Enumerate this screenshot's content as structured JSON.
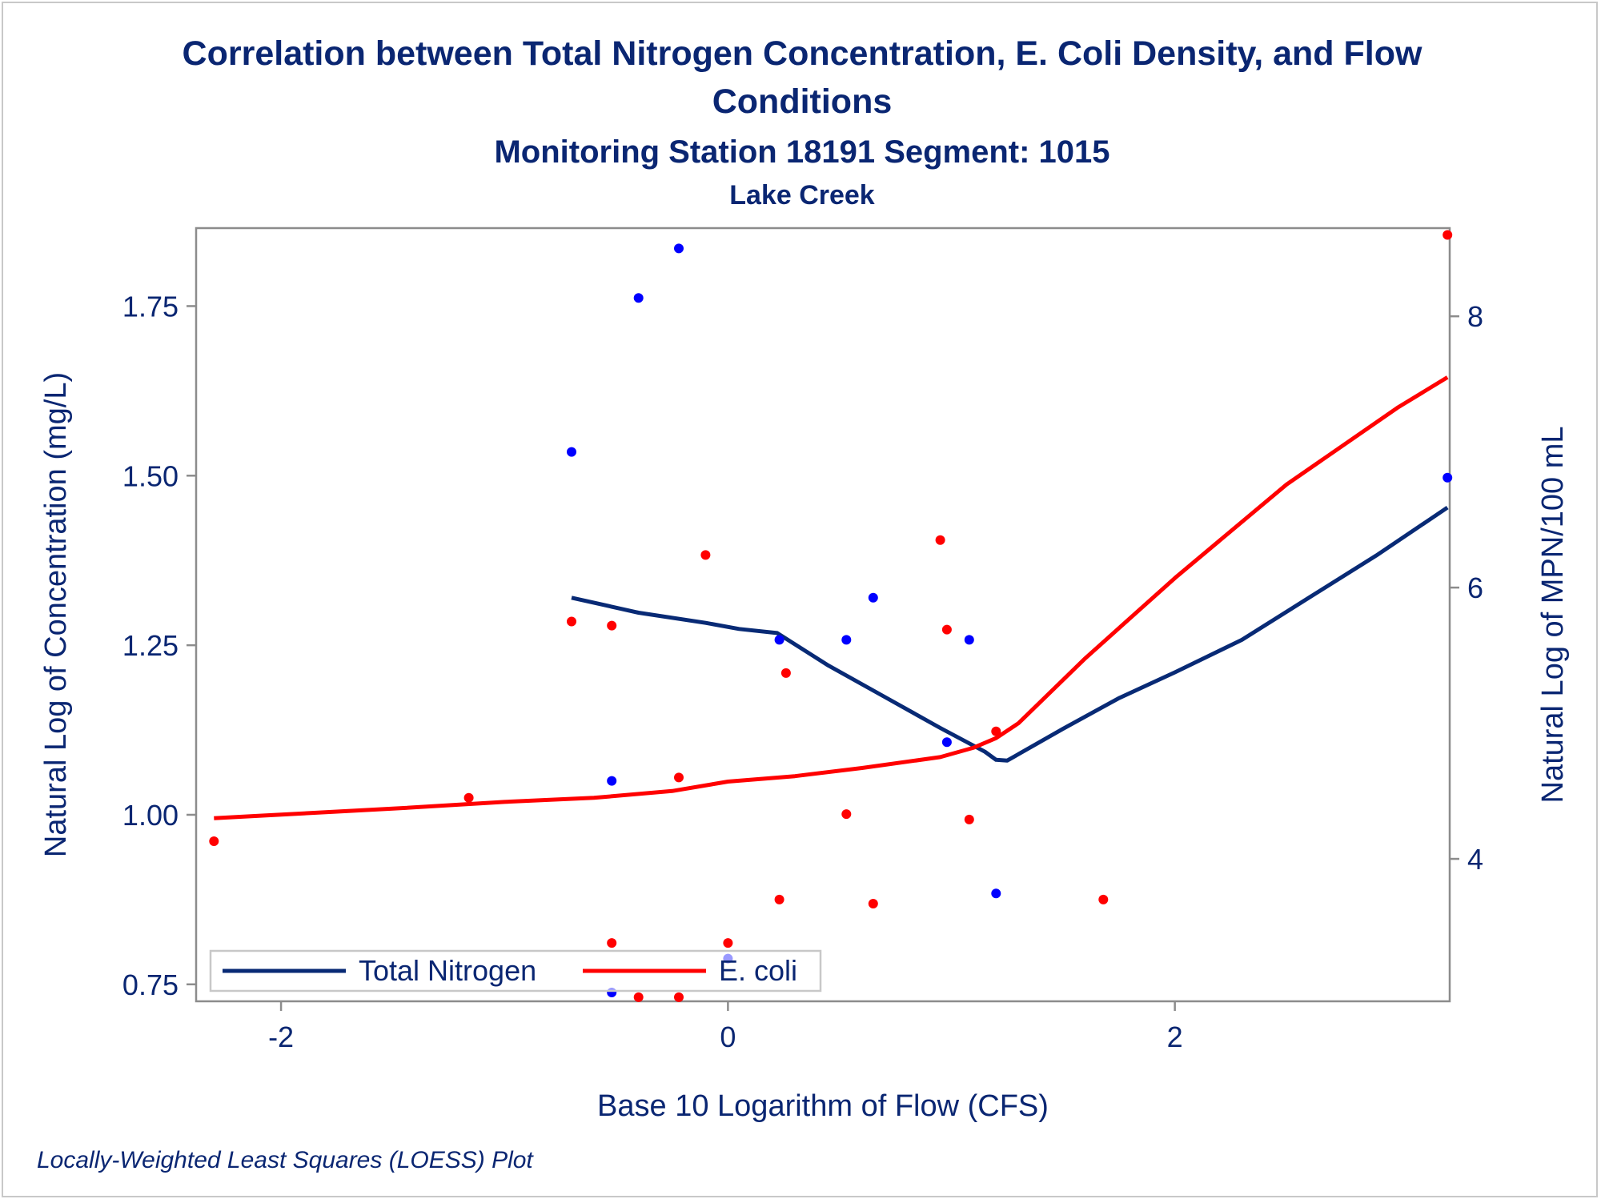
{
  "chart_data": {
    "type": "scatter",
    "title_line1": "Correlation between Total Nitrogen Concentration, E. Coli Density, and Flow",
    "title_line2": "Conditions",
    "subtitle": "Monitoring Station 18191 Segment: 1015",
    "subtitle2": "Lake Creek",
    "xlabel": "Base 10 Logarithm of Flow (CFS)",
    "ylabel_left": "Natural Log of Concentration (mg/L)",
    "ylabel_right": "Natural Log of MPN/100 mL",
    "footnote": "Locally-Weighted Least Squares (LOESS) Plot",
    "xlim": [
      -2.38,
      3.23
    ],
    "ylim_left": [
      0.725,
      1.865
    ],
    "ylim_right": [
      2.95,
      8.65
    ],
    "x_ticks": [
      -2,
      0,
      2
    ],
    "y_left_ticks": [
      0.75,
      1.0,
      1.25,
      1.5,
      1.75
    ],
    "y_left_tick_labels": [
      "0.75",
      "1.00",
      "1.25",
      "1.50",
      "1.75"
    ],
    "y_right_ticks": [
      4,
      6,
      8
    ],
    "grid": false,
    "legend_position": "bottom-left inside",
    "colors": {
      "nitrogen": "#1f3f9f",
      "nitrogen_line": "#082a75",
      "ecoli": "#ff0000",
      "text": "#0a2672",
      "axis": "#8c8c8c"
    },
    "series": [
      {
        "name": "Total Nitrogen",
        "axis": "left",
        "points": [
          [
            -0.7,
            1.535
          ],
          [
            -0.4,
            1.762
          ],
          [
            -0.22,
            1.835
          ],
          [
            -0.52,
            1.05
          ],
          [
            -0.52,
            0.738
          ],
          [
            0.0,
            0.788
          ],
          [
            0.23,
            1.258
          ],
          [
            0.53,
            1.258
          ],
          [
            0.65,
            1.32
          ],
          [
            0.98,
            1.107
          ],
          [
            1.08,
            1.258
          ],
          [
            1.2,
            0.884
          ],
          [
            3.22,
            1.497
          ]
        ],
        "loess": [
          [
            -0.7,
            1.32
          ],
          [
            -0.4,
            1.298
          ],
          [
            -0.1,
            1.283
          ],
          [
            0.05,
            1.274
          ],
          [
            0.22,
            1.268
          ],
          [
            0.45,
            1.22
          ],
          [
            0.7,
            1.174
          ],
          [
            0.95,
            1.128
          ],
          [
            1.15,
            1.093
          ],
          [
            1.2,
            1.081
          ],
          [
            1.25,
            1.08
          ],
          [
            1.5,
            1.127
          ],
          [
            1.75,
            1.172
          ],
          [
            2.0,
            1.21
          ],
          [
            2.3,
            1.258
          ],
          [
            2.6,
            1.32
          ],
          [
            2.9,
            1.382
          ],
          [
            3.22,
            1.453
          ]
        ]
      },
      {
        "name": "E. coli",
        "axis": "right",
        "points": [
          [
            -2.3,
            4.13
          ],
          [
            -1.16,
            4.45
          ],
          [
            -0.7,
            5.75
          ],
          [
            -0.52,
            5.72
          ],
          [
            -0.52,
            3.38
          ],
          [
            -0.4,
            2.98
          ],
          [
            -0.22,
            2.98
          ],
          [
            -0.22,
            4.6
          ],
          [
            -0.1,
            6.24
          ],
          [
            0.0,
            3.38
          ],
          [
            0.23,
            3.7
          ],
          [
            0.26,
            5.37
          ],
          [
            0.53,
            4.33
          ],
          [
            0.65,
            3.67
          ],
          [
            0.95,
            6.35
          ],
          [
            0.98,
            5.69
          ],
          [
            1.08,
            4.29
          ],
          [
            1.2,
            4.94
          ],
          [
            1.68,
            3.7
          ],
          [
            3.22,
            8.6
          ]
        ],
        "loess": [
          [
            -2.3,
            4.3
          ],
          [
            -1.5,
            4.37
          ],
          [
            -1.0,
            4.42
          ],
          [
            -0.6,
            4.45
          ],
          [
            -0.25,
            4.5
          ],
          [
            0.0,
            4.57
          ],
          [
            0.3,
            4.61
          ],
          [
            0.6,
            4.67
          ],
          [
            0.95,
            4.75
          ],
          [
            1.1,
            4.82
          ],
          [
            1.2,
            4.89
          ],
          [
            1.3,
            5.0
          ],
          [
            1.6,
            5.48
          ],
          [
            2.0,
            6.07
          ],
          [
            2.5,
            6.76
          ],
          [
            3.0,
            7.33
          ],
          [
            3.22,
            7.55
          ]
        ]
      }
    ]
  }
}
